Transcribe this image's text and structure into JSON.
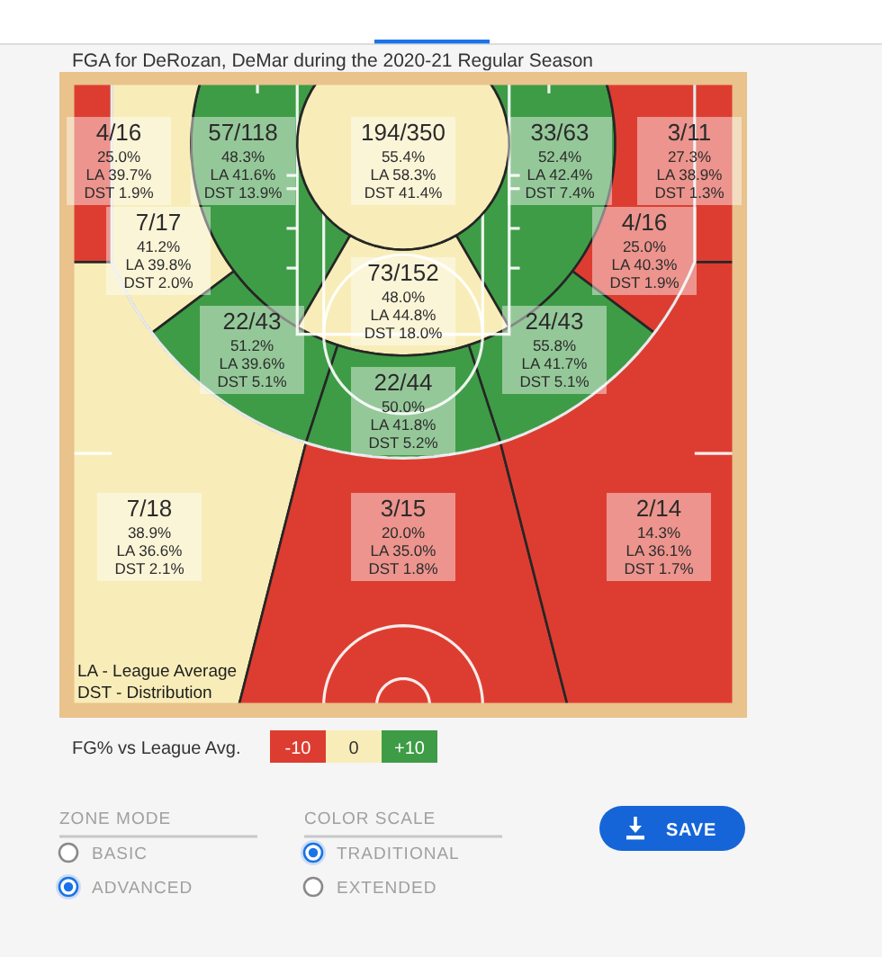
{
  "chart_data": {
    "type": "other",
    "title": "FGA for DeRozan, DeMar during the 2020-21 Regular Season",
    "categories": [
      null,
      null,
      null,
      null,
      null,
      null,
      null,
      null,
      null,
      null,
      null,
      null,
      null,
      null
    ],
    "values": [
      25.0,
      48.3,
      55.4,
      52.4,
      27.3,
      41.2,
      25.0,
      48.0,
      51.2,
      55.8,
      50.0,
      38.9,
      20.0,
      14.3
    ],
    "value_labels": [
      "4/16\n25.0%\nLA 39.7%\nDST 1.9%",
      "57/118\n48.3%\nLA 41.6%\nDST 13.9%",
      "194/350\n55.4%\nLA 58.3%\nDST 41.4%",
      "33/63\n52.4%\nLA 42.4%\nDST 7.4%",
      "3/11\n27.3%\nLA 38.9%\nDST 1.3%",
      "7/17\n41.2%\nLA 39.8%\nDST 2.0%",
      "4/16\n25.0%\nLA 40.3%\nDST 1.9%",
      "73/152\n48.0%\nLA 44.8%\nDST 18.0%",
      "22/43\n51.2%\nLA 39.6%\nDST 5.1%",
      "24/43\n55.8%\nLA 41.7%\nDST 5.1%",
      "22/44\n50.0%\nLA 41.8%\nDST 5.2%",
      "7/18\n38.9%\nLA 36.6%\nDST 2.1%",
      "3/15\n20.0%\nLA 35.0%\nDST 1.8%",
      "2/14\n14.3%\nLA 36.1%\nDST 1.7%"
    ],
    "colors": [
      "#dd3d31",
      "#3e9c46",
      "#f8edb8",
      "#3e9c46",
      "#dd3d31",
      "#f8edb8",
      "#dd3d31",
      "#f8edb8",
      "#3e9c46",
      "#3e9c46",
      "#3e9c46",
      "#f8edb8",
      "#dd3d31",
      "#dd3d31"
    ],
    "annotations": [
      "LA - League Average",
      "DST - Distribution",
      "FG% vs League Avg.",
      "-10",
      "0",
      "+10",
      "ZONE MODE",
      "BASIC",
      "ADVANCED",
      "COLOR SCALE",
      "TRADITIONAL",
      "EXTENDED",
      "SAVE"
    ]
  }
}
